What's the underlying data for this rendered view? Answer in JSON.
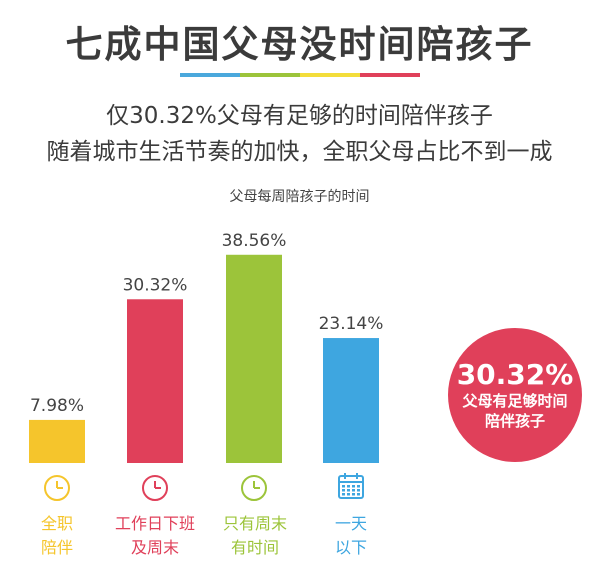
{
  "header": {
    "title": "七成中国父母没时间陪孩子",
    "subtitle_line1": "仅30.32%父母有足够的时间陪伴孩子",
    "subtitle_line2": "随着城市生活节奏的加快，全职父母占比不到一成",
    "rule_colors": [
      "#4aa8dc",
      "#9cc43a",
      "#f3dd3a",
      "#e0405a"
    ]
  },
  "chart_data": {
    "type": "bar",
    "title": "父母每周陪孩子的时间",
    "categories": [
      "全职\n陪伴",
      "工作日下班\n及周末",
      "只有周末\n有时间",
      "一天\n以下"
    ],
    "values": [
      7.98,
      30.32,
      38.56,
      23.14
    ],
    "value_labels": [
      "7.98%",
      "30.32%",
      "38.56%",
      "23.14%"
    ],
    "colors": [
      "#f5c52c",
      "#e0405a",
      "#9cc43a",
      "#3ea6e0"
    ],
    "icons": [
      "clock-icon",
      "clock-icon",
      "clock-icon",
      "calendar-icon"
    ],
    "xlabel": "",
    "ylabel": "",
    "grid": false
  },
  "callout": {
    "value": "30.32%",
    "line1": "父母有足够时间",
    "line2": "陪伴孩子",
    "color": "#e0405a"
  }
}
